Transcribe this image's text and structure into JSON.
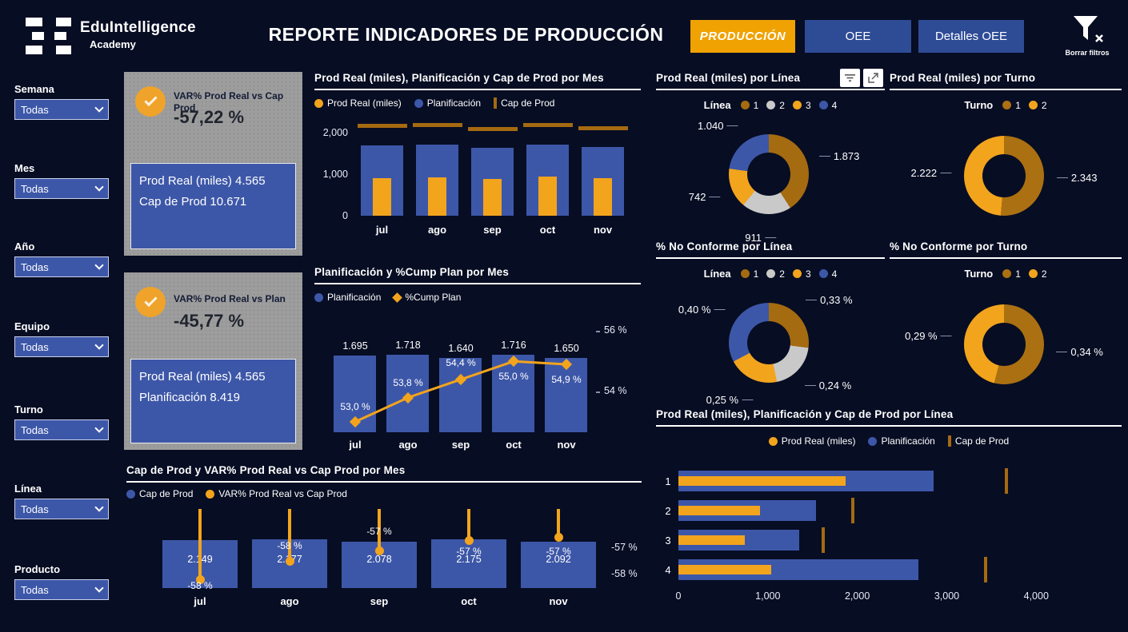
{
  "header": {
    "logo_title": "EduIntelligence",
    "logo_subtitle": "Academy",
    "title": "REPORTE INDICADORES DE PRODUCCIÓN",
    "nav": [
      {
        "label": "PRODUCCIÓN",
        "active": true
      },
      {
        "label": "OEE",
        "active": false
      },
      {
        "label": "Detalles OEE",
        "active": false
      }
    ],
    "clear_filters_label": "Borrar filtros"
  },
  "filters": [
    {
      "label": "Semana",
      "value": "Todas"
    },
    {
      "label": "Mes",
      "value": "Todas"
    },
    {
      "label": "Año",
      "value": "Todas"
    },
    {
      "label": "Equipo",
      "value": "Todas"
    },
    {
      "label": "Turno",
      "value": "Todas"
    },
    {
      "label": "Línea",
      "value": "Todas"
    },
    {
      "label": "Producto",
      "value": "Todas"
    }
  ],
  "kpi_cards": [
    {
      "title": "VAR% Prod Real vs Cap Prod",
      "value": "-57,22 %",
      "line1": "Prod Real (miles) 4.565",
      "line2": "Cap de Prod 10.671"
    },
    {
      "title": "VAR% Prod Real vs Plan",
      "value": "-45,77 %",
      "line1": "Prod Real (miles) 4.565",
      "line2": "Planificación 8.419"
    }
  ],
  "colors": {
    "background": "#070d23",
    "orange": "#f2a41d",
    "blue": "#3d57a8",
    "dark_orange": "#a56a11",
    "turno1": "#ab7012",
    "gray_slice": "#c9c9c9",
    "button_blue": "#2e4b96",
    "active_orange": "#f0a202",
    "card_gray": "#9d9d9d"
  },
  "chart_data": [
    {
      "id": "prod_plan_cap_mes",
      "type": "bar",
      "title": "Prod Real (miles), Planificación y Cap de Prod por Mes",
      "categories": [
        "jul",
        "ago",
        "sep",
        "oct",
        "nov"
      ],
      "series": [
        {
          "name": "Prod Real (miles)",
          "shape": "dot",
          "color": "#f2a41d",
          "values": [
            898,
            924,
            892,
            944,
            906
          ]
        },
        {
          "name": "Planificación",
          "shape": "dot",
          "color": "#3d57a8",
          "values": [
            1695,
            1718,
            1640,
            1716,
            1650
          ]
        },
        {
          "name": "Cap de Prod",
          "shape": "tick",
          "color": "#a56a11",
          "values": [
            2149,
            2177,
            2078,
            2175,
            2092
          ]
        }
      ],
      "yticks": [
        {
          "label": "0",
          "value": 0
        },
        {
          "label": "1,000",
          "value": 1000
        },
        {
          "label": "2,000",
          "value": 2000
        }
      ],
      "ylim": [
        0,
        2400
      ],
      "grid": false,
      "legend_position": "top-left"
    },
    {
      "id": "plan_cump_mes",
      "type": "bar+line",
      "title": "Planificación y %Cump Plan por Mes",
      "categories": [
        "jul",
        "ago",
        "sep",
        "oct",
        "nov"
      ],
      "series": [
        {
          "name": "Planificación",
          "shape": "dot",
          "color": "#3d57a8",
          "values": [
            1695,
            1718,
            1640,
            1716,
            1650
          ],
          "labels": [
            "1.695",
            "1.718",
            "1.640",
            "1.716",
            "1.650"
          ]
        },
        {
          "name": "%Cump Plan",
          "shape": "diamond",
          "color": "#f2a41d",
          "values": [
            53.0,
            53.8,
            54.4,
            55.0,
            54.9
          ],
          "labels": [
            "53,0 %",
            "53,8 %",
            "54,4 %",
            "55,0 %",
            "54,9 %"
          ]
        }
      ],
      "right_axis": [
        {
          "label": "56 %",
          "value": 56
        },
        {
          "label": "54 %",
          "value": 54
        }
      ],
      "ylim": [
        0,
        1800
      ],
      "pct_lim": [
        52.6,
        56.7
      ],
      "legend_position": "top-left"
    },
    {
      "id": "cap_var_mes",
      "type": "bar+lollipop",
      "title": "Cap de Prod y VAR% Prod Real vs Cap Prod por Mes",
      "categories": [
        "jul",
        "ago",
        "sep",
        "oct",
        "nov"
      ],
      "series": [
        {
          "name": "Cap de Prod",
          "shape": "dot",
          "color": "#3d57a8",
          "values": [
            2149,
            2177,
            2078,
            2175,
            2092
          ],
          "labels": [
            "2.149",
            "2.177",
            "2.078",
            "2.175",
            "2.092"
          ]
        },
        {
          "name": "VAR% Prod Real vs Cap Prod",
          "shape": "dot",
          "color": "#f2a41d",
          "values": [
            -58.2,
            -57.5,
            -57.1,
            -56.7,
            -56.6
          ],
          "labels": [
            "-58 %",
            "-58 %",
            "-57 %",
            "-57 %",
            "-57 %"
          ]
        }
      ],
      "right_axis": [
        {
          "label": "-57 %",
          "value": -57
        },
        {
          "label": "-58 %",
          "value": -58
        }
      ],
      "ylim": [
        0,
        2400
      ],
      "legend_position": "top-left"
    },
    {
      "id": "prod_linea",
      "type": "pie",
      "title": "Prod Real (miles) por Línea",
      "legend_title": "Línea",
      "slices": [
        {
          "label": "1",
          "display": "1.873",
          "value": 1873,
          "color": "#a46b10"
        },
        {
          "label": "2",
          "display": "911",
          "value": 911,
          "color": "#c9c9c9"
        },
        {
          "label": "3",
          "display": "742",
          "value": 742,
          "color": "#f2a41d"
        },
        {
          "label": "4",
          "display": "1.040",
          "value": 1040,
          "color": "#3d57a8"
        }
      ]
    },
    {
      "id": "prod_turno",
      "type": "pie",
      "title": "Prod Real (miles) por Turno",
      "legend_title": "Turno",
      "slices": [
        {
          "label": "1",
          "display": "2.343",
          "value": 2343,
          "color": "#ab7012"
        },
        {
          "label": "2",
          "display": "2.222",
          "value": 2222,
          "color": "#f2a41d"
        }
      ]
    },
    {
      "id": "noconf_linea",
      "type": "pie",
      "title": "% No Conforme por Línea",
      "legend_title": "Línea",
      "slices": [
        {
          "label": "1",
          "display": "0,33 %",
          "value": 0.33,
          "color": "#a46b10"
        },
        {
          "label": "2",
          "display": "0,24 %",
          "value": 0.24,
          "color": "#c9c9c9"
        },
        {
          "label": "3",
          "display": "0,25 %",
          "value": 0.25,
          "color": "#f2a41d"
        },
        {
          "label": "4",
          "display": "0,40 %",
          "value": 0.4,
          "color": "#3d57a8"
        }
      ]
    },
    {
      "id": "noconf_turno",
      "type": "pie",
      "title": "% No Conforme por Turno",
      "legend_title": "Turno",
      "slices": [
        {
          "label": "1",
          "display": "0,34 %",
          "value": 0.34,
          "color": "#ab7012"
        },
        {
          "label": "2",
          "display": "0,29 %",
          "value": 0.29,
          "color": "#f2a41d"
        }
      ]
    },
    {
      "id": "prod_linea_h",
      "type": "bar-horizontal",
      "title": "Prod Real (miles), Planificación y Cap de Prod por Línea",
      "categories": [
        "1",
        "2",
        "3",
        "4"
      ],
      "series": [
        {
          "name": "Prod Real (miles)",
          "shape": "dot",
          "color": "#f2a41d",
          "values": [
            1873,
            911,
            742,
            1040
          ]
        },
        {
          "name": "Planificación",
          "shape": "dot",
          "color": "#3d57a8",
          "values": [
            2850,
            1540,
            1350,
            2680
          ]
        },
        {
          "name": "Cap de Prod",
          "shape": "tick",
          "color": "#a56a11",
          "values": [
            3650,
            1930,
            1600,
            3420
          ]
        }
      ],
      "xticks": [
        {
          "label": "0",
          "value": 0
        },
        {
          "label": "1,000",
          "value": 1000
        },
        {
          "label": "2,000",
          "value": 2000
        },
        {
          "label": "3,000",
          "value": 3000
        },
        {
          "label": "4,000",
          "value": 4000
        }
      ],
      "xlim": [
        0,
        4400
      ],
      "legend_position": "top-center"
    }
  ]
}
